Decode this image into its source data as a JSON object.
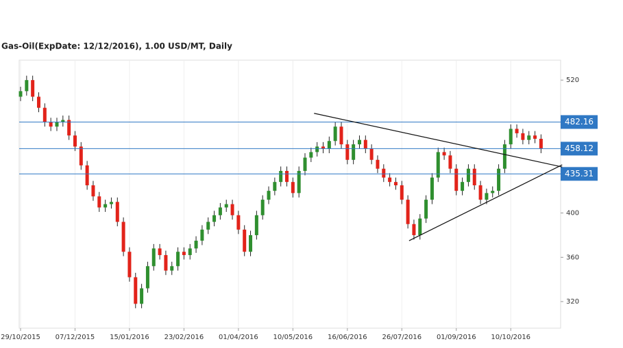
{
  "chart_data": {
    "type": "candlestick",
    "title": "Gas-Oil(ExpDate: 12/12/2016), 1.00 USD/MT, Daily",
    "categories": [
      "29/10/2015",
      null,
      null,
      null,
      null,
      null,
      null,
      null,
      null,
      "07/12/2015",
      null,
      null,
      null,
      null,
      null,
      null,
      null,
      null,
      "15/01/2016",
      null,
      null,
      null,
      null,
      null,
      null,
      null,
      null,
      "23/02/2016",
      null,
      null,
      null,
      null,
      null,
      null,
      null,
      null,
      "01/04/2016",
      null,
      null,
      null,
      null,
      null,
      null,
      null,
      null,
      "10/05/2016",
      null,
      null,
      null,
      null,
      null,
      null,
      null,
      null,
      "16/06/2016",
      null,
      null,
      null,
      null,
      null,
      null,
      null,
      null,
      "26/07/2016",
      null,
      null,
      null,
      null,
      null,
      null,
      null,
      null,
      "01/09/2016",
      null,
      null,
      null,
      null,
      null,
      null,
      null,
      null,
      "10/10/2016",
      null,
      null,
      null,
      null,
      null
    ],
    "open": [
      505,
      510,
      520,
      505,
      495,
      482,
      478,
      482,
      484,
      470,
      460,
      443,
      425,
      415,
      405,
      408,
      410,
      392,
      365,
      342,
      318,
      332,
      352,
      368,
      362,
      348,
      352,
      365,
      362,
      368,
      375,
      385,
      392,
      398,
      405,
      408,
      398,
      385,
      365,
      380,
      398,
      412,
      420,
      428,
      438,
      428,
      418,
      438,
      450,
      455,
      460,
      458,
      465,
      478,
      462,
      448,
      462,
      466,
      458,
      448,
      440,
      432,
      428,
      425,
      412,
      390,
      380,
      395,
      412,
      432,
      455,
      452,
      440,
      420,
      428,
      440,
      425,
      412,
      418,
      420,
      440,
      462,
      476,
      472,
      466,
      470,
      467
    ],
    "high": [
      514,
      524,
      524,
      509,
      499,
      486,
      486,
      488,
      488,
      474,
      464,
      447,
      429,
      419,
      412,
      414,
      414,
      396,
      369,
      346,
      336,
      356,
      372,
      372,
      366,
      356,
      369,
      369,
      372,
      379,
      389,
      396,
      402,
      409,
      412,
      412,
      402,
      389,
      384,
      402,
      416,
      424,
      432,
      442,
      442,
      432,
      442,
      454,
      459,
      464,
      464,
      469,
      482,
      482,
      466,
      466,
      470,
      470,
      462,
      452,
      444,
      436,
      432,
      429,
      416,
      394,
      399,
      416,
      436,
      459,
      459,
      456,
      444,
      432,
      444,
      444,
      429,
      422,
      424,
      444,
      466,
      480,
      480,
      476,
      474,
      474,
      471
    ],
    "low": [
      501,
      506,
      501,
      491,
      478,
      474,
      474,
      478,
      466,
      456,
      439,
      421,
      411,
      401,
      401,
      404,
      388,
      361,
      338,
      314,
      314,
      328,
      348,
      358,
      344,
      344,
      348,
      358,
      358,
      364,
      371,
      381,
      388,
      394,
      401,
      394,
      381,
      361,
      361,
      376,
      394,
      408,
      416,
      424,
      424,
      414,
      414,
      434,
      446,
      451,
      454,
      454,
      461,
      458,
      444,
      444,
      458,
      454,
      444,
      436,
      428,
      424,
      421,
      408,
      386,
      376,
      376,
      391,
      408,
      428,
      448,
      436,
      416,
      416,
      424,
      421,
      408,
      408,
      414,
      416,
      436,
      458,
      468,
      462,
      462,
      463,
      454
    ],
    "close": [
      510,
      520,
      505,
      495,
      482,
      478,
      482,
      484,
      470,
      460,
      443,
      425,
      415,
      405,
      408,
      410,
      392,
      365,
      342,
      318,
      332,
      352,
      368,
      362,
      348,
      352,
      365,
      362,
      368,
      375,
      385,
      392,
      398,
      405,
      408,
      398,
      385,
      365,
      380,
      398,
      412,
      420,
      428,
      438,
      428,
      418,
      438,
      450,
      455,
      460,
      458,
      465,
      478,
      462,
      448,
      462,
      466,
      458,
      448,
      440,
      432,
      428,
      425,
      412,
      390,
      380,
      395,
      412,
      432,
      455,
      452,
      440,
      420,
      428,
      440,
      425,
      412,
      418,
      420,
      440,
      462,
      476,
      472,
      466,
      470,
      467,
      458
    ],
    "up_color": "#2f8f2f",
    "down_color": "#e2231a",
    "levels": [
      482.16,
      458.12,
      435.31
    ],
    "level_color": "#2f78c4",
    "trendlines": [
      {
        "x": [
          48.5,
          89.5
        ],
        "y": [
          490,
          441.6
        ]
      },
      {
        "x": [
          64.2,
          89.5
        ],
        "y": [
          375,
          443.5
        ]
      }
    ],
    "ylim": [
      296,
      538
    ],
    "yticks": [
      320,
      360,
      400,
      520
    ],
    "grid": true
  }
}
